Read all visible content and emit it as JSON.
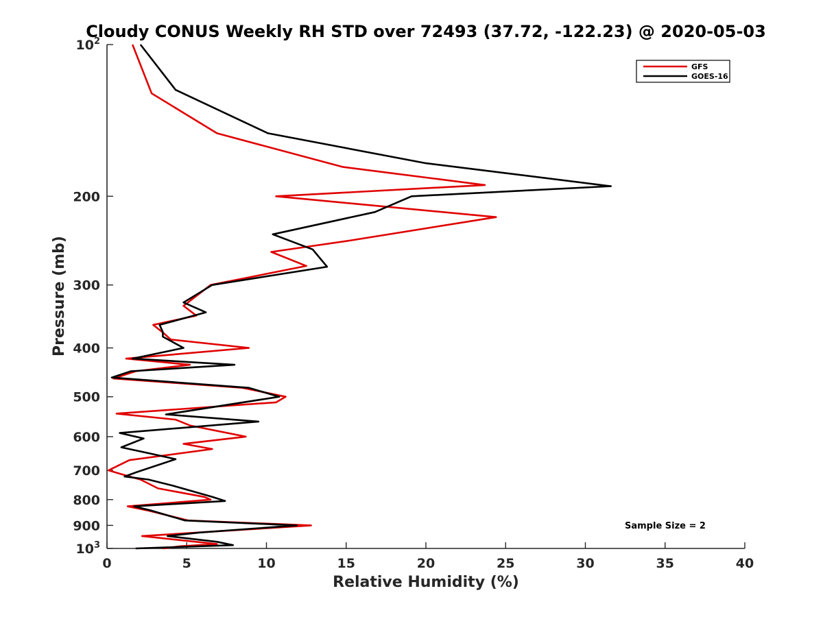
{
  "chart_data": {
    "type": "line",
    "title": "Cloudy CONUS Weekly RH STD over 72493 (37.72, -122.23) @ 2020-05-03",
    "xlabel": "Relative Humidity (%)",
    "ylabel": "Pressure (mb)",
    "xlim": [
      0,
      40
    ],
    "ylim": [
      100,
      1000
    ],
    "y_scale": "log",
    "y_reversed": true,
    "x_ticks": [
      "0",
      "5",
      "10",
      "15",
      "20",
      "25",
      "30",
      "35",
      "40"
    ],
    "y_ticks": [
      {
        "value": 100,
        "base": "10",
        "exp": "2"
      },
      {
        "value": 200,
        "label": "200"
      },
      {
        "value": 300,
        "label": "300"
      },
      {
        "value": 400,
        "label": "400"
      },
      {
        "value": 500,
        "label": "500"
      },
      {
        "value": 600,
        "label": "600"
      },
      {
        "value": 700,
        "label": "700"
      },
      {
        "value": 800,
        "label": "800"
      },
      {
        "value": 900,
        "label": "900"
      },
      {
        "value": 1000,
        "base": "10",
        "exp": "3"
      }
    ],
    "legend_position": "top-right",
    "annotation": "Sample Size = 2",
    "series": [
      {
        "name": "GFS",
        "color": "#e00000",
        "points": [
          [
            1.6,
            100
          ],
          [
            2.8,
            125
          ],
          [
            6.9,
            150
          ],
          [
            14.8,
            175
          ],
          [
            23.7,
            190
          ],
          [
            10.6,
            200
          ],
          [
            24.4,
            220
          ],
          [
            15.2,
            245
          ],
          [
            10.3,
            258
          ],
          [
            12.5,
            275
          ],
          [
            6.5,
            300
          ],
          [
            4.8,
            330
          ],
          [
            5.6,
            345
          ],
          [
            2.9,
            360
          ],
          [
            3.6,
            375
          ],
          [
            4.0,
            385
          ],
          [
            8.9,
            400
          ],
          [
            1.2,
            420
          ],
          [
            5.2,
            432
          ],
          [
            1.8,
            445
          ],
          [
            0.4,
            460
          ],
          [
            8.5,
            480
          ],
          [
            11.2,
            500
          ],
          [
            10.6,
            513
          ],
          [
            0.6,
            540
          ],
          [
            4.3,
            555
          ],
          [
            5.2,
            570
          ],
          [
            8.7,
            600
          ],
          [
            4.8,
            620
          ],
          [
            6.6,
            635
          ],
          [
            1.4,
            668
          ],
          [
            0.1,
            700
          ],
          [
            0.9,
            712
          ],
          [
            2.1,
            730
          ],
          [
            3.2,
            760
          ],
          [
            6.1,
            790
          ],
          [
            6.5,
            800
          ],
          [
            1.3,
            825
          ],
          [
            2.5,
            840
          ],
          [
            5.1,
            880
          ],
          [
            12.8,
            900
          ],
          [
            2.2,
            945
          ],
          [
            6.9,
            980
          ],
          [
            4.6,
            990
          ],
          [
            3.5,
            1000
          ]
        ]
      },
      {
        "name": "GOES-16",
        "color": "#000000",
        "points": [
          [
            2.1,
            100
          ],
          [
            4.3,
            123
          ],
          [
            10.1,
            150
          ],
          [
            20.0,
            172
          ],
          [
            31.6,
            191
          ],
          [
            19.1,
            200
          ],
          [
            16.8,
            215
          ],
          [
            10.4,
            238
          ],
          [
            12.9,
            255
          ],
          [
            13.8,
            276
          ],
          [
            6.6,
            300
          ],
          [
            4.8,
            325
          ],
          [
            6.2,
            340
          ],
          [
            3.3,
            360
          ],
          [
            3.5,
            372
          ],
          [
            3.5,
            380
          ],
          [
            4.8,
            400
          ],
          [
            1.6,
            420
          ],
          [
            8.0,
            432
          ],
          [
            1.5,
            445
          ],
          [
            0.3,
            458
          ],
          [
            8.9,
            480
          ],
          [
            10.8,
            500
          ],
          [
            3.7,
            542
          ],
          [
            9.5,
            560
          ],
          [
            0.8,
            590
          ],
          [
            2.3,
            605
          ],
          [
            0.9,
            630
          ],
          [
            2.9,
            650
          ],
          [
            4.3,
            665
          ],
          [
            1.9,
            705
          ],
          [
            1.1,
            720
          ],
          [
            2.6,
            730
          ],
          [
            4.1,
            750
          ],
          [
            6.6,
            790
          ],
          [
            7.4,
            805
          ],
          [
            1.7,
            825
          ],
          [
            2.7,
            840
          ],
          [
            4.9,
            880
          ],
          [
            11.9,
            900
          ],
          [
            5.8,
            930
          ],
          [
            3.8,
            945
          ],
          [
            6.9,
            970
          ],
          [
            7.9,
            985
          ],
          [
            1.8,
            1000
          ]
        ]
      }
    ]
  }
}
